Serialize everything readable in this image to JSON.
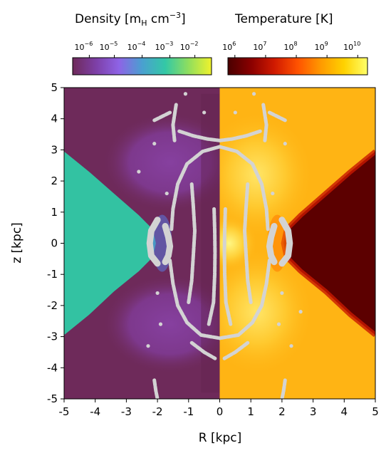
{
  "chart_data": {
    "type": "heatmap",
    "title": "",
    "panels": [
      {
        "name": "density",
        "side": "left",
        "colorbar": {
          "label": "Density [m",
          "label_sub": "H",
          "label_mid": " cm",
          "label_sup": "−3",
          "label_end": "]",
          "colormap": "plasma-viridis",
          "colors": [
            "#6e2a5a",
            "#7d3fa6",
            "#8e63e6",
            "#4aa0d0",
            "#33c8a6",
            "#8fde5e",
            "#f0f22c"
          ],
          "ticks": [
            {
              "base": "10",
              "exp": "−6",
              "pos": 0.12
            },
            {
              "base": "10",
              "exp": "−5",
              "pos": 0.3
            },
            {
              "base": "10",
              "exp": "−4",
              "pos": 0.5
            },
            {
              "base": "10",
              "exp": "−3",
              "pos": 0.7
            },
            {
              "base": "10",
              "exp": "−2",
              "pos": 0.88
            }
          ]
        }
      },
      {
        "name": "temperature",
        "side": "right",
        "colorbar": {
          "label": "Temperature [K]",
          "colormap": "hot",
          "colors": [
            "#4a0000",
            "#8a0000",
            "#d01a00",
            "#ff5200",
            "#ff9a00",
            "#ffd200",
            "#ffff6a"
          ],
          "ticks": [
            {
              "base": "10",
              "exp": "6",
              "pos": 0.05
            },
            {
              "base": "10",
              "exp": "7",
              "pos": 0.27
            },
            {
              "base": "10",
              "exp": "8",
              "pos": 0.49
            },
            {
              "base": "10",
              "exp": "9",
              "pos": 0.71
            },
            {
              "base": "10",
              "exp": "10",
              "pos": 0.93
            }
          ]
        }
      }
    ],
    "xlabel": "R [kpc]",
    "ylabel": "z [kpc]",
    "xlim": [
      -5,
      5
    ],
    "ylim": [
      -5,
      5
    ],
    "xticks": [
      -5,
      -4,
      -3,
      -2,
      -1,
      0,
      1,
      2,
      3,
      4,
      5
    ],
    "yticks": [
      -5,
      -4,
      -3,
      -2,
      -1,
      0,
      1,
      2,
      3,
      4,
      5
    ],
    "xtick_labels": [
      "-5",
      "-4",
      "-3",
      "-2",
      "-1",
      "0",
      "1",
      "2",
      "3",
      "4",
      "5"
    ],
    "ytick_labels": [
      "-5",
      "-4",
      "-3",
      "-2",
      "-1",
      "0",
      "1",
      "2",
      "3",
      "4",
      "5"
    ],
    "grid": false,
    "colors": {
      "density_background": "#6e2a5a",
      "density_disk": "#33c2a2",
      "density_lobe": "#8c47bc",
      "temperature_background": "#ffb414",
      "temperature_disk": "#5c0000",
      "temperature_hotspot": "#ffe84a",
      "tracer_particles": "#d3d3d3"
    },
    "tracer_paths": [
      {
        "name": "cavity-left-left",
        "points": [
          [
            -2.0,
            0.75
          ],
          [
            -2.2,
            0.4
          ],
          [
            -2.25,
            0.0
          ],
          [
            -2.2,
            -0.4
          ],
          [
            -2.0,
            -0.65
          ]
        ]
      },
      {
        "name": "cavity-left-right",
        "points": [
          [
            -1.75,
            0.55
          ],
          [
            -1.65,
            0.2
          ],
          [
            -1.6,
            -0.1
          ],
          [
            -1.65,
            -0.4
          ],
          [
            -1.75,
            -0.6
          ]
        ]
      },
      {
        "name": "cavity-right-right",
        "points": [
          [
            2.0,
            0.75
          ],
          [
            2.2,
            0.4
          ],
          [
            2.25,
            0.0
          ],
          [
            2.2,
            -0.4
          ],
          [
            2.0,
            -0.65
          ]
        ]
      },
      {
        "name": "cavity-right-left",
        "points": [
          [
            1.75,
            0.55
          ],
          [
            1.65,
            0.2
          ],
          [
            1.6,
            -0.1
          ],
          [
            1.65,
            -0.4
          ],
          [
            1.75,
            -0.6
          ]
        ]
      },
      {
        "name": "left-outer-upper",
        "points": [
          [
            -1.55,
            0.45
          ],
          [
            -1.5,
            1.1
          ],
          [
            -1.35,
            1.9
          ],
          [
            -1.05,
            2.55
          ],
          [
            -0.55,
            2.95
          ],
          [
            0.0,
            3.1
          ]
        ]
      },
      {
        "name": "left-outer-lower",
        "points": [
          [
            -1.6,
            -0.55
          ],
          [
            -1.5,
            -1.3
          ],
          [
            -1.35,
            -2.0
          ],
          [
            -1.05,
            -2.55
          ],
          [
            -0.6,
            -2.95
          ],
          [
            0.0,
            -3.05
          ]
        ]
      },
      {
        "name": "right-outer-upper",
        "points": [
          [
            1.55,
            0.45
          ],
          [
            1.5,
            1.1
          ],
          [
            1.35,
            1.9
          ],
          [
            1.05,
            2.55
          ],
          [
            0.55,
            2.95
          ],
          [
            0.0,
            3.1
          ]
        ]
      },
      {
        "name": "right-outer-lower",
        "points": [
          [
            1.6,
            -0.55
          ],
          [
            1.5,
            -1.3
          ],
          [
            1.35,
            -2.0
          ],
          [
            1.05,
            -2.55
          ],
          [
            0.6,
            -2.95
          ],
          [
            0.0,
            -3.05
          ]
        ]
      },
      {
        "name": "left-inner-column",
        "points": [
          [
            -0.18,
            1.1
          ],
          [
            -0.16,
            0.4
          ],
          [
            -0.15,
            -0.3
          ],
          [
            -0.16,
            -1.0
          ],
          [
            -0.2,
            -1.9
          ],
          [
            -0.35,
            -2.6
          ]
        ]
      },
      {
        "name": "right-inner-column",
        "points": [
          [
            0.18,
            1.1
          ],
          [
            0.16,
            0.4
          ],
          [
            0.15,
            -0.3
          ],
          [
            0.16,
            -1.0
          ],
          [
            0.2,
            -1.9
          ],
          [
            0.35,
            -2.6
          ]
        ]
      },
      {
        "name": "left-mid-filament",
        "points": [
          [
            -0.9,
            1.9
          ],
          [
            -0.85,
            1.2
          ],
          [
            -0.8,
            0.4
          ],
          [
            -0.85,
            -0.4
          ],
          [
            -0.9,
            -1.2
          ],
          [
            -1.0,
            -1.9
          ]
        ]
      },
      {
        "name": "right-mid-filament",
        "points": [
          [
            0.9,
            1.9
          ],
          [
            0.85,
            1.2
          ],
          [
            0.8,
            0.4
          ],
          [
            0.85,
            -0.4
          ],
          [
            0.9,
            -1.2
          ],
          [
            1.0,
            -1.9
          ]
        ]
      },
      {
        "name": "left-top-arc",
        "points": [
          [
            -1.3,
            3.6
          ],
          [
            -0.85,
            3.45
          ],
          [
            -0.4,
            3.35
          ],
          [
            0.0,
            3.3
          ]
        ]
      },
      {
        "name": "right-top-arc",
        "points": [
          [
            1.3,
            3.6
          ],
          [
            0.85,
            3.45
          ],
          [
            0.4,
            3.35
          ],
          [
            0.0,
            3.3
          ]
        ]
      },
      {
        "name": "left-upper-streak",
        "points": [
          [
            -1.4,
            4.45
          ],
          [
            -1.5,
            3.8
          ],
          [
            -1.45,
            3.3
          ]
        ]
      },
      {
        "name": "right-upper-streak",
        "points": [
          [
            1.4,
            4.45
          ],
          [
            1.5,
            3.8
          ],
          [
            1.45,
            3.3
          ]
        ]
      },
      {
        "name": "left-bottom-arc",
        "points": [
          [
            -0.9,
            -3.2
          ],
          [
            -0.5,
            -3.5
          ],
          [
            -0.15,
            -3.7
          ]
        ]
      },
      {
        "name": "right-bottom-arc",
        "points": [
          [
            0.9,
            -3.2
          ],
          [
            0.5,
            -3.5
          ],
          [
            0.15,
            -3.7
          ]
        ]
      },
      {
        "name": "left-low-streak",
        "points": [
          [
            -2.1,
            -4.4
          ],
          [
            -2.05,
            -4.75
          ],
          [
            -2.0,
            -5.0
          ]
        ]
      },
      {
        "name": "right-low-streak",
        "points": [
          [
            2.1,
            -4.4
          ],
          [
            2.05,
            -4.75
          ],
          [
            2.0,
            -5.0
          ]
        ]
      },
      {
        "name": "right-top-dash",
        "points": [
          [
            1.6,
            4.2
          ],
          [
            1.9,
            4.05
          ],
          [
            2.1,
            3.95
          ]
        ]
      },
      {
        "name": "left-top-dash",
        "points": [
          [
            -1.6,
            4.2
          ],
          [
            -1.9,
            4.05
          ],
          [
            -2.1,
            3.95
          ]
        ]
      }
    ],
    "tracer_dots": [
      [
        -2.1,
        3.2
      ],
      [
        2.1,
        3.2
      ],
      [
        -1.7,
        1.6
      ],
      [
        1.7,
        1.6
      ],
      [
        -2.0,
        -1.6
      ],
      [
        2.0,
        -1.6
      ],
      [
        -1.9,
        -2.6
      ],
      [
        1.9,
        -2.6
      ],
      [
        -0.5,
        4.2
      ],
      [
        0.5,
        4.2
      ],
      [
        -2.3,
        -3.3
      ],
      [
        2.3,
        -3.3
      ],
      [
        -1.1,
        4.8
      ],
      [
        1.1,
        4.8
      ],
      [
        -2.6,
        2.3
      ],
      [
        2.6,
        -2.2
      ]
    ]
  }
}
